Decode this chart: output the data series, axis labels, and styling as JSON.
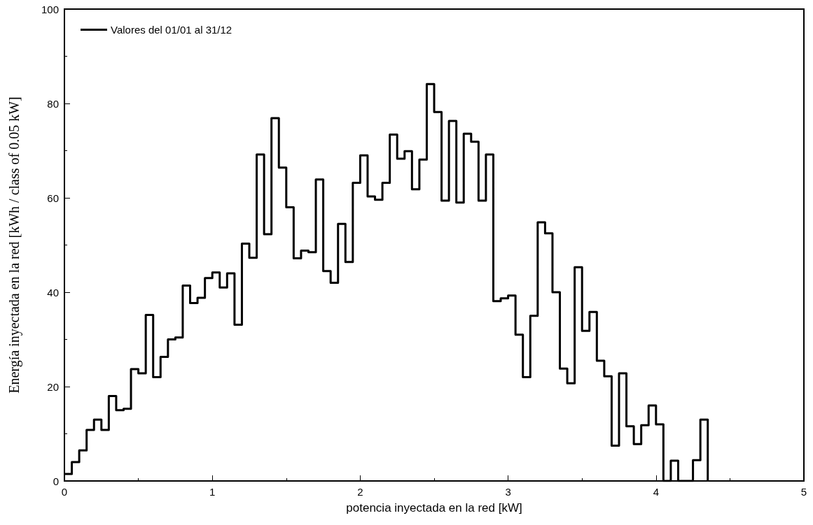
{
  "chart_data": {
    "type": "step",
    "xlabel": "potencia inyectada en la red [kW]",
    "ylabel": "Energía inyectada en la red [kWh / class of 0.05 kW]",
    "x": [
      0,
      0.05,
      0.1,
      0.15,
      0.2,
      0.25,
      0.3,
      0.35,
      0.4,
      0.45,
      0.5,
      0.55,
      0.6,
      0.65,
      0.7,
      0.75,
      0.8,
      0.85,
      0.9,
      0.95,
      1,
      1.05,
      1.1,
      1.15,
      1.2,
      1.25,
      1.3,
      1.35,
      1.4,
      1.45,
      1.5,
      1.55,
      1.6,
      1.65,
      1.7,
      1.75,
      1.8,
      1.85,
      1.9,
      1.95,
      2,
      2.05,
      2.1,
      2.15,
      2.2,
      2.25,
      2.3,
      2.35,
      2.4,
      2.45,
      2.5,
      2.55,
      2.6,
      2.65,
      2.7,
      2.75,
      2.8,
      2.85,
      2.9,
      2.95,
      3,
      3.05,
      3.1,
      3.15,
      3.2,
      3.25,
      3.3,
      3.35,
      3.4,
      3.45,
      3.5,
      3.55,
      3.6,
      3.65,
      3.7,
      3.75,
      3.8,
      3.85,
      3.9,
      3.95,
      4,
      4.05,
      4.1,
      4.15,
      4.2,
      4.25,
      4.3,
      4.35
    ],
    "series": [
      {
        "name": "Valores del 01/01 al 31/12",
        "color": "#000000",
        "values": [
          1.5,
          4,
          6.5,
          10.8,
          13,
          10.8,
          18,
          15,
          15.3,
          23.7,
          22.8,
          35.2,
          22,
          26.3,
          30,
          30.4,
          41.4,
          37.7,
          38.8,
          43,
          44.2,
          41,
          44,
          33.1,
          50.3,
          47.3,
          69.2,
          52.3,
          76.9,
          66.4,
          58,
          47.2,
          48.8,
          48.5,
          63.9,
          44.5,
          42,
          54.5,
          46.4,
          63.2,
          69,
          60.3,
          59.6,
          63.2,
          73.4,
          68.3,
          69.9,
          61.8,
          68.1,
          84.1,
          78.2,
          59.4,
          76.3,
          59,
          73.6,
          71.9,
          59.4,
          69.2,
          38.1,
          38.7,
          39.3,
          31,
          22,
          35,
          54.8,
          52.5,
          40,
          23.8,
          20.7,
          45.3,
          31.8,
          35.8,
          25.5,
          22.2,
          7.5,
          22.8,
          11.6,
          7.8,
          11.8,
          16,
          12,
          0,
          4.3,
          0,
          0,
          4.4,
          13,
          0
        ]
      }
    ],
    "xlim": [
      0,
      5
    ],
    "xticks": [
      0,
      1,
      2,
      3,
      4,
      5
    ],
    "ylim": [
      0,
      100
    ],
    "yticks": [
      0,
      20,
      40,
      60,
      80,
      100
    ],
    "legend": "top left",
    "grid": false,
    "line_style": "solid",
    "marker": "none"
  }
}
